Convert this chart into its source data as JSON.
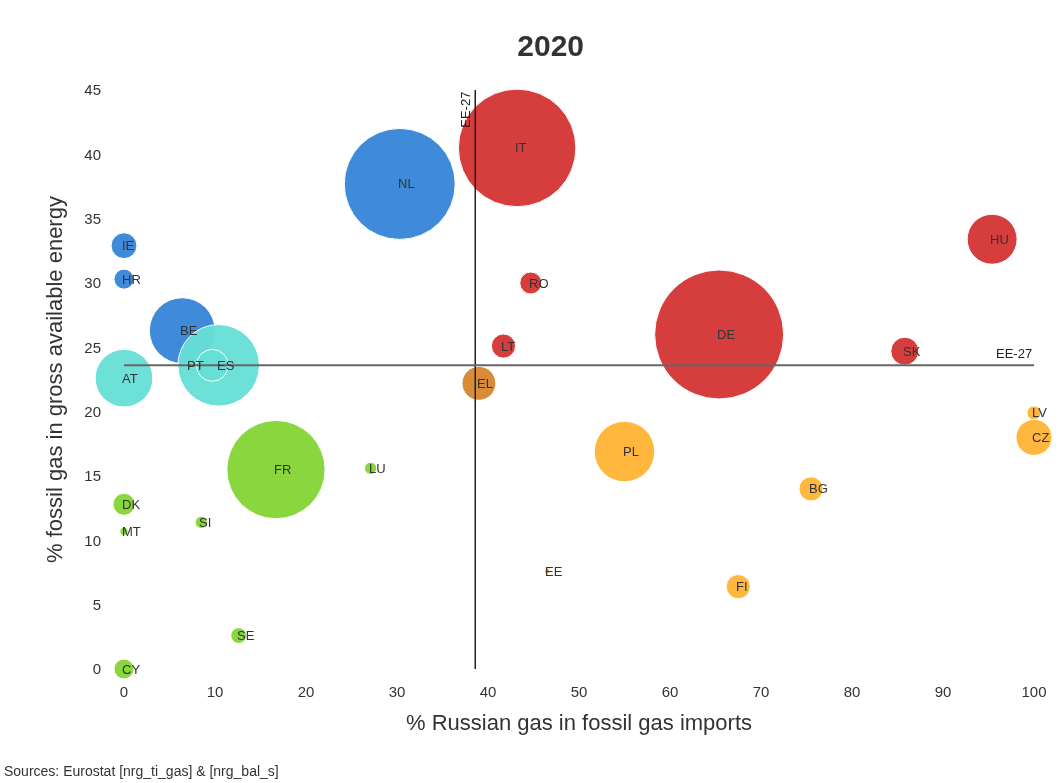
{
  "chart_data": {
    "type": "bubble",
    "title": "2020",
    "xlabel": "% Russian gas in fossil gas imports",
    "ylabel": "% fossil gas in gross available energy",
    "x": [
      43.2,
      30.3,
      0,
      0,
      6.4,
      10.4,
      9.7,
      0,
      39,
      41.7,
      44.7,
      65.4,
      85.8,
      95.4,
      100,
      100,
      55,
      75.5,
      46.5,
      67.5,
      16.7,
      27.1,
      0,
      0,
      8.5,
      12.6,
      0
    ],
    "values": [
      40.5,
      37.7,
      32.9,
      30.3,
      26.3,
      23.6,
      23.6,
      22.6,
      22.2,
      25.1,
      30.0,
      26.0,
      24.7,
      33.4,
      19.9,
      18.0,
      16.9,
      14.0,
      7.6,
      6.4,
      15.5,
      15.6,
      12.8,
      10.7,
      11.4,
      2.6,
      0
    ],
    "sizes": [
      0.83,
      0.74,
      0.04,
      0.024,
      0.26,
      0.4,
      0.061,
      0.2,
      0.069,
      0.035,
      0.029,
      1,
      0.047,
      0.15,
      0.012,
      0.078,
      0.22,
      0.035,
      0.002,
      0.035,
      0.58,
      0.009,
      0.029,
      0.004,
      0.009,
      0.015,
      0.024
    ],
    "colors": [
      "#d43333",
      "#3585d8",
      "#3585d8",
      "#3585d8",
      "#3585d8",
      "#66e0d6",
      "#66e0d6",
      "#66e0d6",
      "#d6862f",
      "#d43333",
      "#d43333",
      "#d43333",
      "#d43333",
      "#d43333",
      "#ffb433",
      "#ffb433",
      "#ffb433",
      "#ffb433",
      "#ffb433",
      "#ffb433",
      "#84d434",
      "#84d434",
      "#84d434",
      "#84d434",
      "#84d434",
      "#84d434",
      "#84d434"
    ],
    "xlim": [
      0,
      100
    ],
    "ylim": [
      0,
      45
    ],
    "xticks": [
      0,
      10,
      20,
      30,
      40,
      50,
      60,
      70,
      80,
      90,
      100
    ],
    "yticks": [
      0,
      5,
      10,
      15,
      20,
      25,
      30,
      35,
      40,
      45
    ],
    "ref_lines": [
      {
        "axis": "x",
        "value": 38.6,
        "label": "EE-27",
        "color": "#222222"
      },
      {
        "axis": "y",
        "value": 23.6,
        "label": "EE-27",
        "color": "#666666"
      }
    ],
    "annotations": [
      "Sources: Eurostat [nrg_ti_gas] & [nrg_bal_s]",
      {
        "text": "IT",
        "x": 43.2,
        "y": 40.5
      },
      {
        "text": "NL",
        "x": 30.3,
        "y": 37.7
      },
      {
        "text": "IE",
        "x": 0,
        "y": 32.9
      },
      {
        "text": "HR",
        "x": 0,
        "y": 30.3
      },
      {
        "text": "BE",
        "x": 6.4,
        "y": 26.3
      },
      {
        "text": "ES",
        "x": 10.4,
        "y": 23.6
      },
      {
        "text": "PT",
        "x": 9.7,
        "y": 23.6
      },
      {
        "text": "AT",
        "x": 0,
        "y": 22.6
      },
      {
        "text": "EL",
        "x": 39,
        "y": 22.2
      },
      {
        "text": "LT",
        "x": 41.7,
        "y": 25.1
      },
      {
        "text": "RO",
        "x": 44.7,
        "y": 30.0
      },
      {
        "text": "DE",
        "x": 65.4,
        "y": 26.0
      },
      {
        "text": "SK",
        "x": 85.8,
        "y": 24.7
      },
      {
        "text": "HU",
        "x": 95.4,
        "y": 33.4
      },
      {
        "text": "LV",
        "x": 100,
        "y": 19.9
      },
      {
        "text": "CZ",
        "x": 100,
        "y": 18.0
      },
      {
        "text": "PL",
        "x": 55,
        "y": 16.9
      },
      {
        "text": "BG",
        "x": 75.5,
        "y": 14.0
      },
      {
        "text": "EE",
        "x": 46.5,
        "y": 7.6
      },
      {
        "text": "FI",
        "x": 67.5,
        "y": 6.4
      },
      {
        "text": "FR",
        "x": 16.7,
        "y": 15.5
      },
      {
        "text": "LU",
        "x": 27.1,
        "y": 15.6
      },
      {
        "text": "DK",
        "x": 0,
        "y": 12.8
      },
      {
        "text": "MT",
        "x": 0,
        "y": 10.7
      },
      {
        "text": "SI",
        "x": 8.5,
        "y": 11.4
      },
      {
        "text": "SE",
        "x": 12.6,
        "y": 2.6
      },
      {
        "text": "CY",
        "x": 0,
        "y": 0
      }
    ]
  }
}
